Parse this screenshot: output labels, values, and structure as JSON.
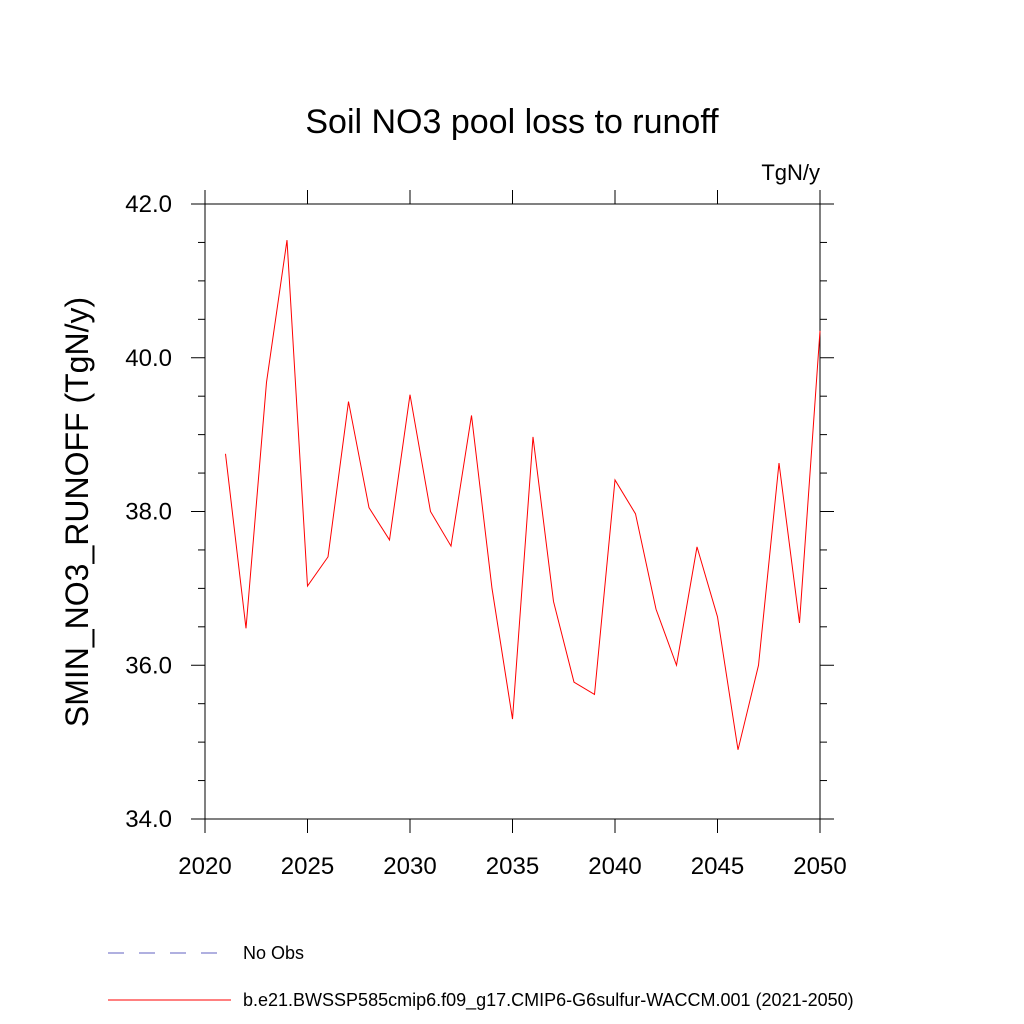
{
  "chart_data": {
    "type": "line",
    "title": "Soil NO3 pool loss to runoff",
    "units": "TgN/y",
    "xlabel": "",
    "ylabel": "SMIN_NO3_RUNOFF  (TgN/y)",
    "xlim": [
      2020,
      2050
    ],
    "ylim": [
      34.0,
      42.0
    ],
    "x_ticks": [
      2020,
      2025,
      2030,
      2035,
      2040,
      2045,
      2050
    ],
    "x_tick_labels": [
      "2020",
      "2025",
      "2030",
      "2035",
      "2040",
      "2045",
      "2050"
    ],
    "y_ticks": [
      34,
      36,
      38,
      40,
      42
    ],
    "y_tick_labels": [
      "34.0",
      "36.0",
      "38.0",
      "40.0",
      "42.0"
    ],
    "grid": false,
    "legend_position": "bottom",
    "series": [
      {
        "name": "b.e21.BWSSP585cmip6.f09_g17.CMIP6-G6sulfur-WACCM.001 (2021-2050)",
        "color": "#ff0000",
        "style": "solid",
        "x": [
          2021,
          2022,
          2023,
          2024,
          2025,
          2026,
          2027,
          2028,
          2029,
          2030,
          2031,
          2032,
          2033,
          2034,
          2035,
          2036,
          2037,
          2038,
          2039,
          2040,
          2041,
          2042,
          2043,
          2044,
          2045,
          2046,
          2047,
          2048,
          2049,
          2050
        ],
        "values": [
          38.75,
          36.48,
          39.68,
          41.53,
          37.03,
          37.41,
          39.43,
          38.05,
          37.63,
          39.52,
          38.0,
          37.55,
          39.25,
          37.0,
          35.3,
          38.97,
          36.83,
          35.78,
          35.62,
          38.41,
          37.97,
          36.73,
          36.0,
          37.54,
          36.63,
          34.9,
          36.0,
          38.63,
          36.55,
          40.35
        ]
      },
      {
        "name": "No Obs",
        "color": "#6060c0",
        "style": "dashed",
        "x": [],
        "values": []
      }
    ]
  }
}
